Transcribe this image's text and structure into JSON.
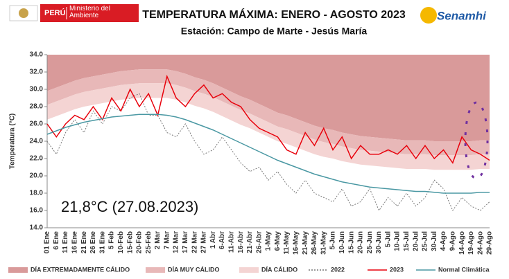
{
  "header": {
    "country": "PERÚ",
    "ministry": "Ministerio del Ambiente",
    "agency": "Senamhi"
  },
  "chart_data": {
    "type": "line",
    "title": "TEMPERATURA MÁXIMA:  ENERO - AGOSTO 2023",
    "subtitle": "Estación:  Campo de Marte - Jesús María",
    "y_label": "Temperatura (°C)",
    "annotation": "21,8°C (27.08.2023)",
    "ylim": [
      14,
      34
    ],
    "yticks": [
      {
        "value": 14,
        "label": "14.0"
      },
      {
        "value": 16,
        "label": "16.0"
      },
      {
        "value": 18,
        "label": "18.0"
      },
      {
        "value": 20,
        "label": "20.0"
      },
      {
        "value": 22,
        "label": "22.0"
      },
      {
        "value": 24,
        "label": "24.0"
      },
      {
        "value": 26,
        "label": "26.0"
      },
      {
        "value": 28,
        "label": "28.0"
      },
      {
        "value": 30,
        "label": "30.0"
      },
      {
        "value": 32,
        "label": "32.0"
      },
      {
        "value": 34,
        "label": "34.0"
      }
    ],
    "categories": [
      "01 Ene",
      "6 Ene",
      "11 Ene",
      "16 Ene",
      "21 Ene",
      "26 Ene",
      "31 Ene",
      "5 Feb",
      "10-Feb",
      "15-Feb",
      "20-Feb",
      "25-Feb",
      "2 Mar",
      "7 Mar",
      "12 Mar",
      "17 Mar",
      "22 Mar",
      "27 Mar",
      "1 Abr",
      "6-Abr",
      "11-Abr",
      "16-Abr",
      "21-Abr",
      "26-Abr",
      "1-May",
      "6-May",
      "11-May",
      "16-May",
      "21-May",
      "26-May",
      "31-May",
      "5-Jun",
      "10-Jun",
      "15-Jun",
      "20-Jun",
      "25-Jun",
      "30-Jun",
      "5-Jul",
      "10-Jul",
      "15-Jul",
      "20-Jul",
      "25-Jul",
      "30-Jul",
      "4-Ago",
      "9-Ago",
      "14-Ago",
      "19-Ago",
      "24-Ago",
      "29-Ago"
    ],
    "bands": [
      {
        "name": "DÍA EXTREMADAMENTE CÁLIDO",
        "color": "#d99a9a",
        "values": [
          29.8,
          30.2,
          30.6,
          31.0,
          31.3,
          31.5,
          31.7,
          31.9,
          32.1,
          32.2,
          32.3,
          32.3,
          32.3,
          32.3,
          32.1,
          31.8,
          31.4,
          31.1,
          30.7,
          30.2,
          29.7,
          29.2,
          28.8,
          28.3,
          27.8,
          27.3,
          27.0,
          26.6,
          26.2,
          25.8,
          25.5,
          25.3,
          25.0,
          24.8,
          24.6,
          24.5,
          24.4,
          24.3,
          24.2,
          24.1,
          24.1,
          24.1,
          24.0,
          24.0,
          24.0,
          24.0,
          24.0,
          24.1,
          24.1
        ]
      },
      {
        "name": "DÍA MUY CÁLIDO",
        "color": "#e8b8b8",
        "values": [
          28.2,
          28.6,
          29.0,
          29.4,
          29.7,
          29.9,
          30.1,
          30.3,
          30.5,
          30.6,
          30.7,
          30.7,
          30.7,
          30.7,
          30.5,
          30.2,
          29.8,
          29.5,
          29.1,
          28.6,
          28.1,
          27.6,
          27.2,
          26.7,
          26.2,
          25.7,
          25.4,
          25.0,
          24.6,
          24.2,
          23.9,
          23.7,
          23.4,
          23.2,
          23.0,
          22.9,
          22.8,
          22.7,
          22.6,
          22.5,
          22.5,
          22.5,
          22.4,
          22.4,
          22.4,
          22.4,
          22.4,
          22.5,
          22.5
        ]
      },
      {
        "name": "DÍA CÁLIDO",
        "color": "#f4d4d3",
        "values": [
          26.5,
          26.9,
          27.3,
          27.7,
          28.0,
          28.2,
          28.4,
          28.6,
          28.8,
          28.9,
          29.0,
          29.0,
          29.0,
          29.0,
          28.8,
          28.5,
          28.1,
          27.8,
          27.4,
          26.9,
          26.4,
          25.9,
          25.5,
          25.0,
          24.5,
          24.0,
          23.7,
          23.3,
          22.9,
          22.5,
          22.2,
          22.0,
          21.7,
          21.5,
          21.3,
          21.2,
          21.1,
          21.0,
          20.9,
          20.8,
          20.8,
          20.8,
          20.7,
          20.7,
          20.7,
          20.7,
          20.7,
          20.8,
          20.8
        ]
      }
    ],
    "series": [
      {
        "name": "2022",
        "color": "#777777",
        "dash": "dotted",
        "values": [
          24.0,
          22.5,
          25.0,
          26.5,
          25.0,
          27.5,
          26.0,
          28.0,
          27.5,
          29.0,
          29.5,
          27.0,
          27.0,
          25.0,
          24.5,
          26.0,
          24.0,
          22.5,
          23.0,
          24.5,
          23.0,
          21.5,
          20.5,
          21.0,
          19.5,
          20.5,
          19.0,
          18.0,
          19.5,
          18.0,
          17.5,
          17.0,
          18.5,
          16.5,
          17.0,
          18.5,
          16.0,
          17.5,
          16.5,
          18.0,
          16.5,
          17.5,
          19.5,
          18.5,
          16.0,
          17.5,
          16.5,
          16.0,
          17.0
        ]
      },
      {
        "name": "2023",
        "color": "#e8000b",
        "dash": "solid",
        "values": [
          26.0,
          24.5,
          26.0,
          27.0,
          26.5,
          28.0,
          26.5,
          29.0,
          27.5,
          30.0,
          28.0,
          29.5,
          27.0,
          31.5,
          29.0,
          28.0,
          29.5,
          30.5,
          29.0,
          29.5,
          28.5,
          28.0,
          26.5,
          25.5,
          25.0,
          24.5,
          23.0,
          22.5,
          25.0,
          23.5,
          25.5,
          23.0,
          24.5,
          22.0,
          23.5,
          22.5,
          22.5,
          23.0,
          22.5,
          23.5,
          22.0,
          23.5,
          22.0,
          23.0,
          21.5,
          24.5,
          23.0,
          22.5,
          21.8
        ]
      },
      {
        "name": "Normal Climática",
        "color": "#4a98a3",
        "dash": "solid",
        "values": [
          24.8,
          25.2,
          25.6,
          25.9,
          26.2,
          26.4,
          26.6,
          26.8,
          26.9,
          27.0,
          27.1,
          27.1,
          27.1,
          27.0,
          26.8,
          26.5,
          26.1,
          25.7,
          25.3,
          24.8,
          24.3,
          23.8,
          23.3,
          22.8,
          22.3,
          21.8,
          21.4,
          21.0,
          20.6,
          20.2,
          19.9,
          19.6,
          19.3,
          19.1,
          18.9,
          18.7,
          18.6,
          18.5,
          18.4,
          18.3,
          18.2,
          18.2,
          18.1,
          18.0,
          18.0,
          18.0,
          18.0,
          18.1,
          18.1
        ]
      }
    ]
  }
}
